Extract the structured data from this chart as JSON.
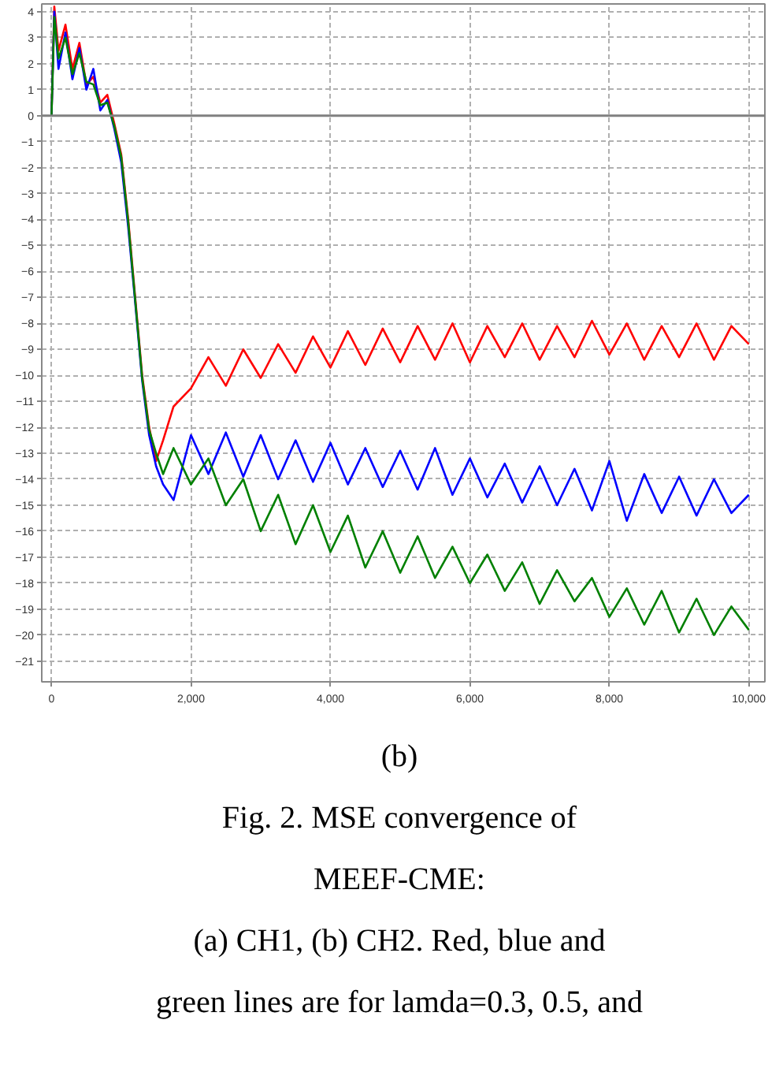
{
  "chart_data": {
    "type": "line",
    "xlim": [
      -140,
      10230
    ],
    "ylim": [
      -21.8,
      4.3
    ],
    "xticks": [
      0,
      {
        "value": 2000,
        "label": "2,000"
      },
      {
        "value": 4000,
        "label": "4,000"
      },
      {
        "value": 6000,
        "label": "6,000"
      },
      {
        "value": 8000,
        "label": "8,000"
      },
      {
        "value": 10000,
        "label": "10,000"
      }
    ],
    "yticks": [
      -21,
      -20,
      -19,
      -18,
      -17,
      -16,
      -15,
      -14,
      -13,
      -12,
      -11,
      -10,
      -9,
      -8,
      -7,
      -6,
      -5,
      -4,
      -3,
      -2,
      -1,
      0,
      1,
      2,
      3,
      4
    ],
    "grid": true,
    "line_style": "solid",
    "ref_lines": [
      {
        "axis": "y",
        "value": 0,
        "color": "#808080"
      }
    ],
    "annotations": [
      "(b)",
      "Fig. 2. MSE convergence of",
      "MEEF-CME:",
      "(a) CH1, (b) CH2. Red, blue and",
      "green lines are for lamda=0.3, 0.5, and"
    ],
    "series": [
      {
        "color": "#ff0000",
        "x": [
          0,
          40,
          100,
          200,
          300,
          400,
          500,
          600,
          700,
          800,
          900,
          1000,
          1100,
          1200,
          1300,
          1400,
          1500,
          1600,
          1750,
          2000,
          2250,
          2500,
          2750,
          3000,
          3250,
          3500,
          3750,
          4000,
          4250,
          4500,
          4750,
          5000,
          5250,
          5500,
          5750,
          6000,
          6250,
          6500,
          6750,
          7000,
          7250,
          7500,
          7750,
          8000,
          8250,
          8500,
          8750,
          9000,
          9250,
          9500,
          9750,
          10000
        ],
        "values": [
          0,
          4.2,
          2.5,
          3.5,
          1.8,
          2.8,
          1.2,
          1.5,
          0.5,
          0.8,
          -0.3,
          -1.5,
          -4,
          -7,
          -10,
          -12,
          -13.3,
          -12.5,
          -11.2,
          -10.5,
          -9.3,
          -10.4,
          -9.0,
          -10.1,
          -8.8,
          -9.9,
          -8.5,
          -9.7,
          -8.3,
          -9.6,
          -8.2,
          -9.5,
          -8.1,
          -9.4,
          -8.0,
          -9.5,
          -8.1,
          -9.3,
          -8.0,
          -9.4,
          -8.1,
          -9.3,
          -7.9,
          -9.2,
          -8.0,
          -9.4,
          -8.1,
          -9.3,
          -8.0,
          -9.4,
          -8.1,
          -8.8
        ]
      },
      {
        "color": "#0000ff",
        "x": [
          0,
          40,
          100,
          200,
          300,
          400,
          500,
          600,
          700,
          800,
          900,
          1000,
          1100,
          1200,
          1300,
          1400,
          1500,
          1600,
          1750,
          2000,
          2250,
          2500,
          2750,
          3000,
          3250,
          3500,
          3750,
          4000,
          4250,
          4500,
          4750,
          5000,
          5250,
          5500,
          5750,
          6000,
          6250,
          6500,
          6750,
          7000,
          7250,
          7500,
          7750,
          8000,
          8250,
          8500,
          8750,
          9000,
          9250,
          9500,
          9750,
          10000
        ],
        "values": [
          0,
          4.0,
          1.8,
          3.2,
          1.4,
          2.6,
          1.0,
          1.8,
          0.2,
          0.6,
          -0.5,
          -1.8,
          -4.3,
          -7.2,
          -10.2,
          -12.3,
          -13.5,
          -14.2,
          -14.8,
          -12.3,
          -13.8,
          -12.2,
          -13.9,
          -12.3,
          -14.0,
          -12.5,
          -14.1,
          -12.6,
          -14.2,
          -12.8,
          -14.3,
          -12.9,
          -14.4,
          -12.8,
          -14.6,
          -13.2,
          -14.7,
          -13.4,
          -14.9,
          -13.5,
          -15.0,
          -13.6,
          -15.2,
          -13.3,
          -15.6,
          -13.8,
          -15.3,
          -13.9,
          -15.4,
          -14.0,
          -15.3,
          -14.6
        ]
      },
      {
        "color": "#008000",
        "x": [
          0,
          40,
          100,
          200,
          300,
          400,
          500,
          600,
          700,
          800,
          900,
          1000,
          1100,
          1200,
          1300,
          1400,
          1500,
          1600,
          1750,
          2000,
          2250,
          2500,
          2750,
          3000,
          3250,
          3500,
          3750,
          4000,
          4250,
          4500,
          4750,
          5000,
          5250,
          5500,
          5750,
          6000,
          6250,
          6500,
          6750,
          7000,
          7250,
          7500,
          7750,
          8000,
          8250,
          8500,
          8750,
          9000,
          9250,
          9500,
          9750,
          10000
        ],
        "values": [
          0,
          3.8,
          2.2,
          3.0,
          1.6,
          2.4,
          1.3,
          1.2,
          0.4,
          0.5,
          -0.4,
          -1.6,
          -4.1,
          -7.1,
          -10.1,
          -12.1,
          -13.0,
          -13.8,
          -12.8,
          -14.2,
          -13.2,
          -15.0,
          -14.0,
          -16.0,
          -14.6,
          -16.5,
          -15.0,
          -16.8,
          -15.4,
          -17.4,
          -16.0,
          -17.6,
          -16.2,
          -17.8,
          -16.6,
          -18.0,
          -16.9,
          -18.3,
          -17.2,
          -18.8,
          -17.5,
          -18.7,
          -17.8,
          -19.3,
          -18.2,
          -19.6,
          -18.3,
          -19.9,
          -18.6,
          -20.0,
          -18.9,
          -19.8
        ]
      }
    ]
  }
}
